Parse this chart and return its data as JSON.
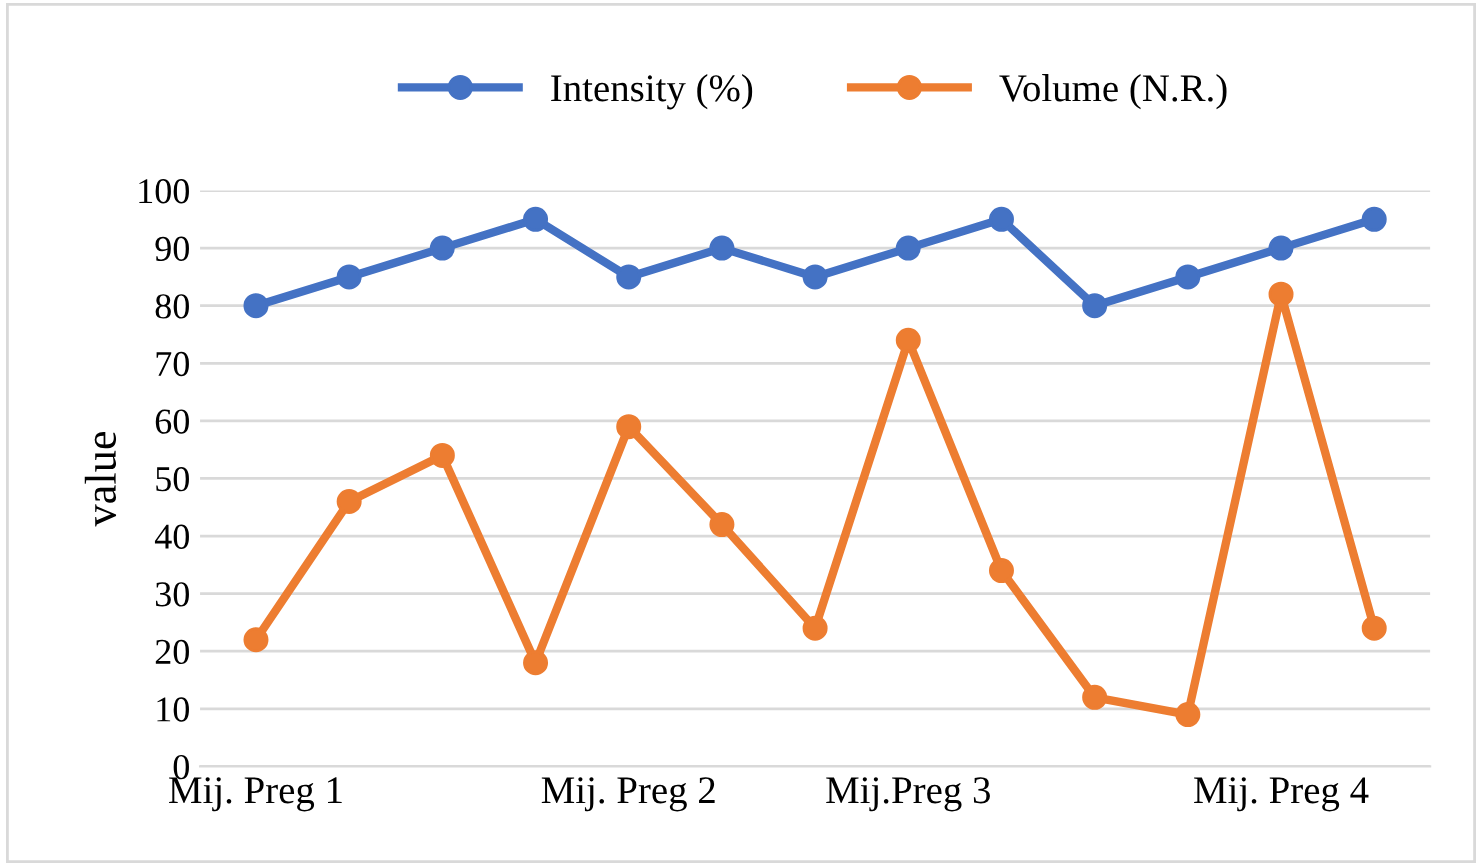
{
  "chart_data": {
    "type": "line",
    "ylabel": "value",
    "categories": [
      "Mij. Preg 1",
      null,
      null,
      null,
      "Mij. Preg 2",
      null,
      null,
      "Mij.Preg 3",
      null,
      null,
      null,
      "Mij. Preg 4",
      null
    ],
    "series": [
      {
        "name": "Intensity (%)",
        "color": "#4472c4",
        "values": [
          80,
          85,
          90,
          95,
          85,
          90,
          85,
          90,
          95,
          80,
          85,
          90,
          95
        ]
      },
      {
        "name": "Volume (N.R.)",
        "color": "#ed7d31",
        "values": [
          22,
          46,
          54,
          18,
          59,
          42,
          24,
          74,
          34,
          12,
          9,
          82,
          24
        ]
      }
    ],
    "ylim": [
      0,
      100
    ],
    "yticks": [
      0,
      10,
      20,
      30,
      40,
      50,
      60,
      70,
      80,
      90,
      100
    ],
    "grid": "y",
    "legend": "top",
    "marker": "circle",
    "line_style": "solid"
  }
}
